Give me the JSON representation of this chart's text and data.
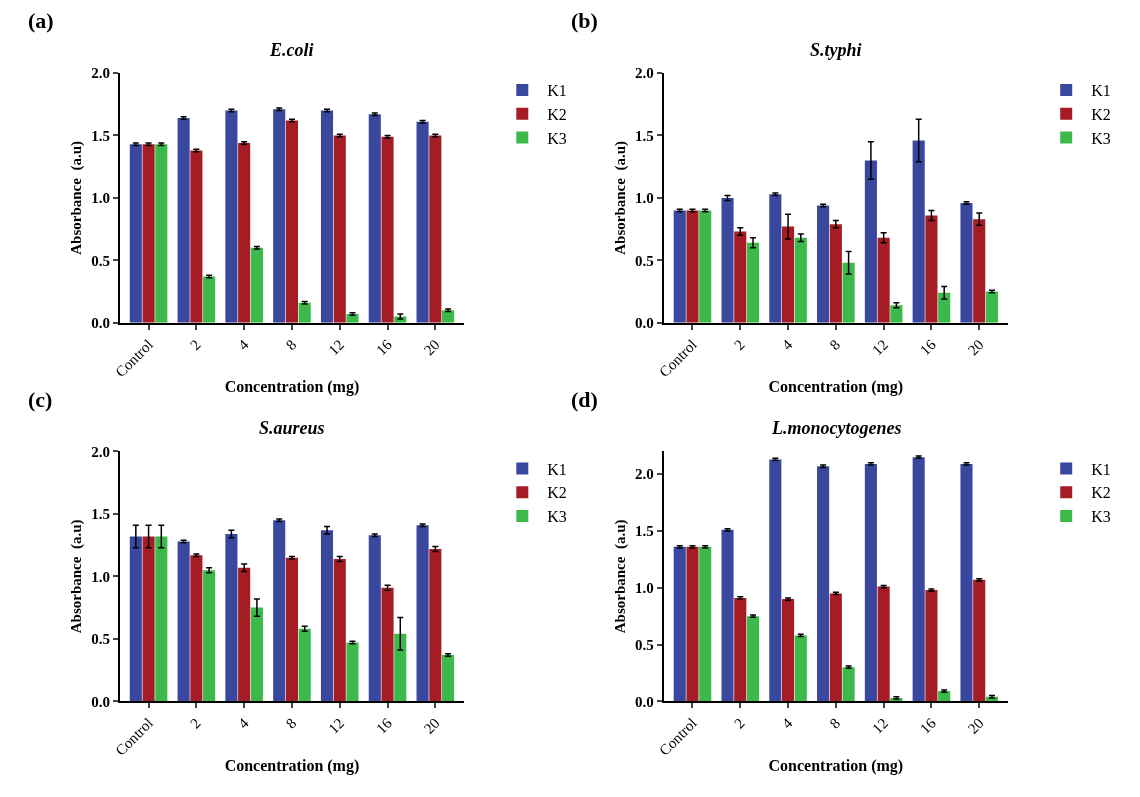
{
  "chart_data": [
    {
      "type": "bar",
      "title": "E.coli",
      "xlabel": "Concentration (mg)",
      "ylabel": "Absorbance  (a.u)",
      "annotations": [
        "(a)"
      ],
      "categories": [
        "Control",
        "2",
        "4",
        "8",
        "12",
        "16",
        "20"
      ],
      "ylim": [
        0,
        2.0
      ],
      "yticks": [
        {
          "value": 0,
          "label": "0.0"
        },
        {
          "value": 0.5,
          "label": "0.5"
        },
        {
          "value": 1,
          "label": "1.0"
        },
        {
          "value": 1.5,
          "label": "1.5"
        },
        {
          "value": 2,
          "label": "2.0"
        }
      ],
      "legend": "top right",
      "series": [
        {
          "name": "K1",
          "color": "#3a479f",
          "values": [
            1.43,
            1.64,
            1.7,
            1.71,
            1.7,
            1.67,
            1.61
          ],
          "errors": [
            0.01,
            0.01,
            0.01,
            0.01,
            0.01,
            0.01,
            0.01
          ]
        },
        {
          "name": "K2",
          "color": "#a51c24",
          "values": [
            1.43,
            1.38,
            1.44,
            1.62,
            1.5,
            1.49,
            1.5
          ],
          "errors": [
            0.01,
            0.01,
            0.01,
            0.01,
            0.01,
            0.01,
            0.01
          ]
        },
        {
          "name": "K3",
          "color": "#3cb94a",
          "values": [
            1.43,
            0.37,
            0.6,
            0.16,
            0.07,
            0.05,
            0.1
          ],
          "errors": [
            0.01,
            0.01,
            0.01,
            0.01,
            0.01,
            0.02,
            0.01
          ]
        }
      ]
    },
    {
      "type": "bar",
      "title": "S.typhi",
      "xlabel": "Concentration (mg)",
      "ylabel": "Absorbance  (a.u)",
      "annotations": [
        "(b)"
      ],
      "categories": [
        "Control",
        "2",
        "4",
        "8",
        "12",
        "16",
        "20"
      ],
      "ylim": [
        0,
        2.0
      ],
      "yticks": [
        {
          "value": 0,
          "label": "0.0"
        },
        {
          "value": 0.5,
          "label": "0.5"
        },
        {
          "value": 1,
          "label": "1.0"
        },
        {
          "value": 1.5,
          "label": "1.5"
        },
        {
          "value": 2,
          "label": "2.0"
        }
      ],
      "legend": "top right",
      "series": [
        {
          "name": "K1",
          "color": "#3a479f",
          "values": [
            0.9,
            1.0,
            1.03,
            0.94,
            1.3,
            1.46,
            0.96
          ],
          "errors": [
            0.01,
            0.02,
            0.01,
            0.01,
            0.15,
            0.17,
            0.01
          ]
        },
        {
          "name": "K2",
          "color": "#a51c24",
          "values": [
            0.9,
            0.73,
            0.77,
            0.79,
            0.68,
            0.86,
            0.83
          ],
          "errors": [
            0.01,
            0.03,
            0.1,
            0.03,
            0.04,
            0.04,
            0.05
          ]
        },
        {
          "name": "K3",
          "color": "#3cb94a",
          "values": [
            0.9,
            0.64,
            0.68,
            0.48,
            0.14,
            0.24,
            0.25
          ],
          "errors": [
            0.01,
            0.04,
            0.03,
            0.09,
            0.02,
            0.05,
            0.01
          ]
        }
      ]
    },
    {
      "type": "bar",
      "title": "S.aureus",
      "xlabel": "Concentration (mg)",
      "ylabel": "Absorbance  (a.u)",
      "annotations": [
        "(c)"
      ],
      "categories": [
        "Control",
        "2",
        "4",
        "8",
        "12",
        "16",
        "20"
      ],
      "ylim": [
        0,
        2.0
      ],
      "yticks": [
        {
          "value": 0,
          "label": "0.0"
        },
        {
          "value": 0.5,
          "label": "0.5"
        },
        {
          "value": 1,
          "label": "1.0"
        },
        {
          "value": 1.5,
          "label": "1.5"
        },
        {
          "value": 2,
          "label": "2.0"
        }
      ],
      "legend": "top right",
      "series": [
        {
          "name": "K1",
          "color": "#3a479f",
          "values": [
            1.32,
            1.28,
            1.34,
            1.45,
            1.37,
            1.33,
            1.41
          ],
          "errors": [
            0.09,
            0.01,
            0.03,
            0.01,
            0.03,
            0.01,
            0.01
          ]
        },
        {
          "name": "K2",
          "color": "#a51c24",
          "values": [
            1.32,
            1.17,
            1.07,
            1.15,
            1.14,
            0.91,
            1.22
          ],
          "errors": [
            0.09,
            0.01,
            0.03,
            0.01,
            0.02,
            0.02,
            0.02
          ]
        },
        {
          "name": "K3",
          "color": "#3cb94a",
          "values": [
            1.32,
            1.05,
            0.75,
            0.58,
            0.47,
            0.54,
            0.37
          ],
          "errors": [
            0.09,
            0.02,
            0.07,
            0.02,
            0.01,
            0.13,
            0.01
          ]
        }
      ]
    },
    {
      "type": "bar",
      "title": "L.monocytogenes",
      "xlabel": "Concentration (mg)",
      "ylabel": "Absorbance  (a.u)",
      "annotations": [
        "(d)"
      ],
      "categories": [
        "Control",
        "2",
        "4",
        "8",
        "12",
        "16",
        "20"
      ],
      "ylim": [
        0,
        2.2
      ],
      "yticks": [
        {
          "value": 0,
          "label": "0.0"
        },
        {
          "value": 0.5,
          "label": "0.5"
        },
        {
          "value": 1,
          "label": "1.0"
        },
        {
          "value": 1.5,
          "label": "1.5"
        },
        {
          "value": 2,
          "label": "2.0"
        }
      ],
      "legend": "top right",
      "series": [
        {
          "name": "K1",
          "color": "#3a479f",
          "values": [
            1.36,
            1.51,
            2.13,
            2.07,
            2.09,
            2.15,
            2.09
          ],
          "errors": [
            0.01,
            0.01,
            0.01,
            0.01,
            0.01,
            0.01,
            0.01
          ]
        },
        {
          "name": "K2",
          "color": "#a51c24",
          "values": [
            1.36,
            0.91,
            0.9,
            0.95,
            1.01,
            0.98,
            1.07
          ],
          "errors": [
            0.01,
            0.01,
            0.01,
            0.01,
            0.01,
            0.01,
            0.01
          ]
        },
        {
          "name": "K3",
          "color": "#3cb94a",
          "values": [
            1.36,
            0.75,
            0.58,
            0.3,
            0.03,
            0.09,
            0.04
          ],
          "errors": [
            0.01,
            0.01,
            0.01,
            0.01,
            0.01,
            0.01,
            0.01
          ]
        }
      ]
    }
  ]
}
